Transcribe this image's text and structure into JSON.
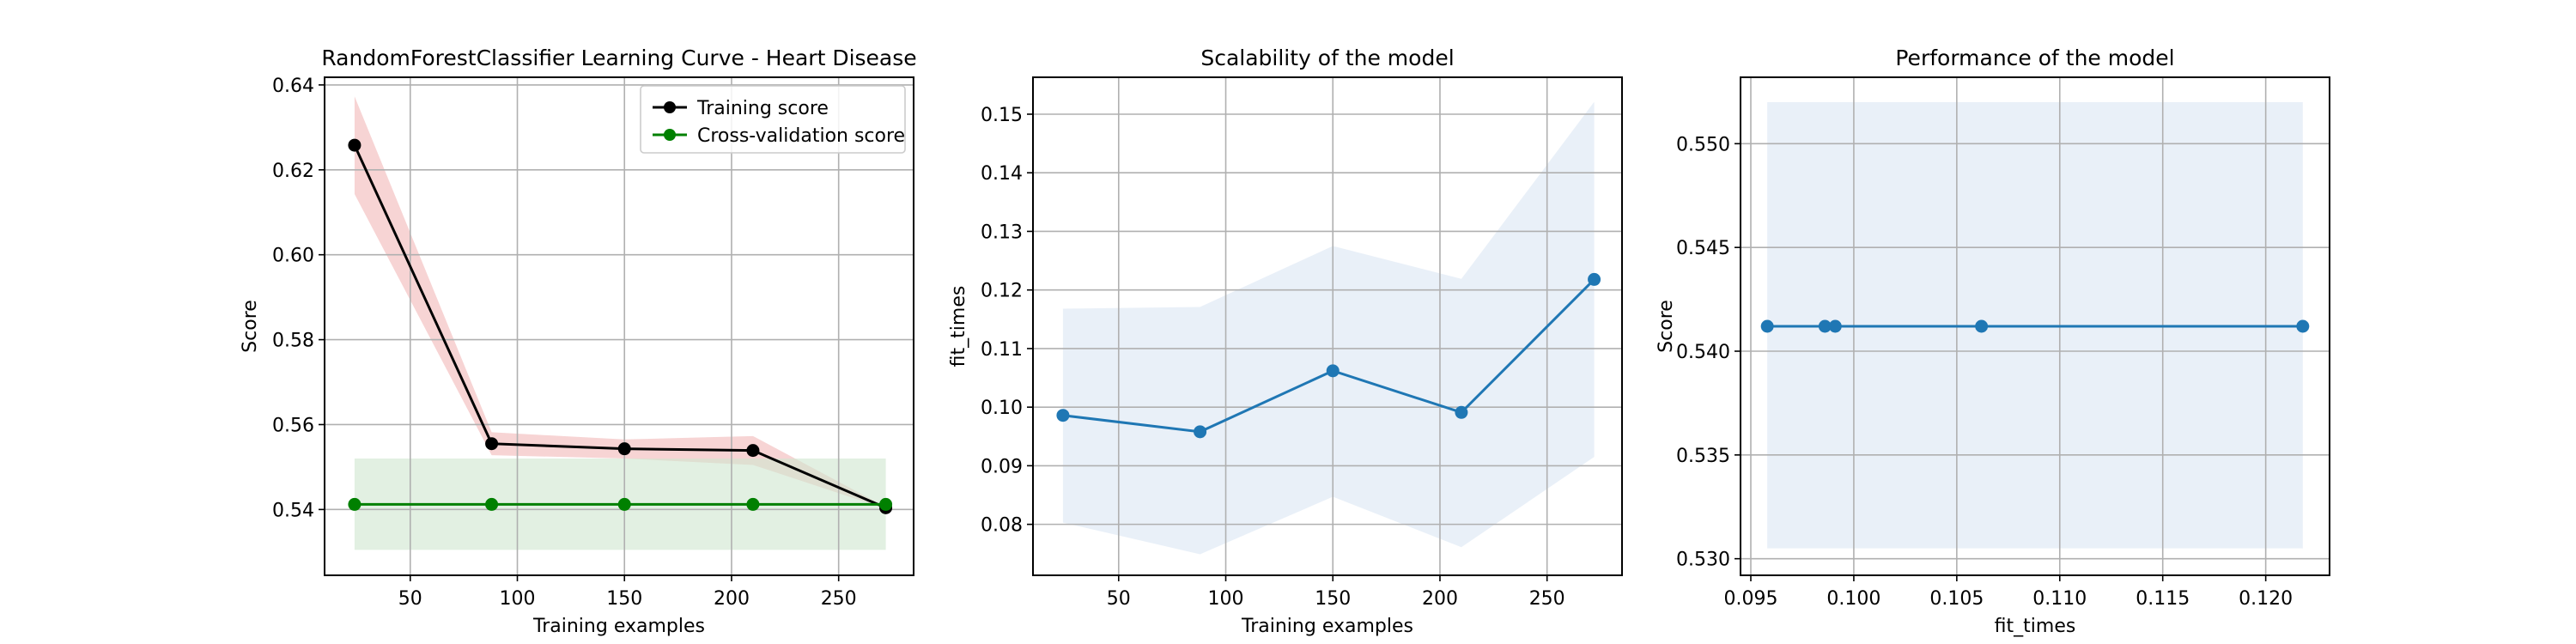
{
  "figure": {
    "background": "#ffffff",
    "colors": {
      "training": "#000000",
      "training_band": "#f2b8b8",
      "cv": "#008000",
      "cv_band": "#cfe6cf",
      "blue": "#1f77b4",
      "blue_band": "#dbe6f3",
      "grid": "#b0b0b0"
    }
  },
  "chart_data": [
    {
      "type": "line",
      "title": "RandomForestClassifier Learning Curve - Heart Disease",
      "xlabel": "Training examples",
      "ylabel": "Score",
      "xlim": [
        10,
        285
      ],
      "ylim": [
        0.5245,
        0.6418
      ],
      "xticks": [
        50,
        100,
        150,
        200,
        250
      ],
      "xtick_labels": [
        "50",
        "100",
        "150",
        "200",
        "250"
      ],
      "yticks": [
        0.54,
        0.56,
        0.58,
        0.6,
        0.62,
        0.64
      ],
      "ytick_labels": [
        "0.54",
        "0.56",
        "0.58",
        "0.60",
        "0.62",
        "0.64"
      ],
      "grid": true,
      "legend": "top-right",
      "x": [
        24,
        88,
        150,
        210,
        272
      ],
      "series": [
        {
          "name": "Training score",
          "color": "#000000",
          "band_color": "#f2b8b8",
          "values": [
            0.6258,
            0.5555,
            0.5543,
            0.5539,
            0.5404
          ],
          "lower": [
            0.6143,
            0.5528,
            0.552,
            0.5505,
            0.5402
          ],
          "upper": [
            0.6373,
            0.5582,
            0.5565,
            0.5573,
            0.5406
          ]
        },
        {
          "name": "Cross-validation score",
          "color": "#008000",
          "band_color": "#cfe6cf",
          "values": [
            0.5412,
            0.5412,
            0.5412,
            0.5412,
            0.5412
          ],
          "lower": [
            0.5305,
            0.5305,
            0.5305,
            0.5305,
            0.5305
          ],
          "upper": [
            0.552,
            0.552,
            0.552,
            0.552,
            0.552
          ]
        }
      ]
    },
    {
      "type": "line",
      "title": "Scalability of the model",
      "xlabel": "Training examples",
      "ylabel": "fit_times",
      "xlim": [
        10,
        285
      ],
      "ylim": [
        0.0713,
        0.1563
      ],
      "xticks": [
        50,
        100,
        150,
        200,
        250
      ],
      "xtick_labels": [
        "50",
        "100",
        "150",
        "200",
        "250"
      ],
      "yticks": [
        0.08,
        0.09,
        0.1,
        0.11,
        0.12,
        0.13,
        0.14,
        0.15
      ],
      "ytick_labels": [
        "0.08",
        "0.09",
        "0.10",
        "0.11",
        "0.12",
        "0.13",
        "0.14",
        "0.15"
      ],
      "grid": true,
      "x": [
        24,
        88,
        150,
        210,
        272
      ],
      "series": [
        {
          "color": "#1f77b4",
          "band_color": "#dbe6f3",
          "values": [
            0.0986,
            0.0958,
            0.1062,
            0.0991,
            0.1218
          ],
          "lower": [
            0.0803,
            0.0749,
            0.0847,
            0.0761,
            0.0915
          ],
          "upper": [
            0.1168,
            0.1171,
            0.1275,
            0.1219,
            0.1521
          ]
        }
      ]
    },
    {
      "type": "line",
      "title": "Performance of the model",
      "xlabel": "fit_times",
      "ylabel": "Score",
      "xlim": [
        0.0945,
        0.1231
      ],
      "ylim": [
        0.5292,
        0.5532
      ],
      "xticks": [
        0.095,
        0.1,
        0.105,
        0.11,
        0.115,
        0.12
      ],
      "xtick_labels": [
        "0.095",
        "0.100",
        "0.105",
        "0.110",
        "0.115",
        "0.120"
      ],
      "yticks": [
        0.53,
        0.535,
        0.54,
        0.545,
        0.55
      ],
      "ytick_labels": [
        "0.530",
        "0.535",
        "0.540",
        "0.545",
        "0.550"
      ],
      "grid": true,
      "x": [
        0.0958,
        0.0986,
        0.0991,
        0.1062,
        0.1218
      ],
      "series": [
        {
          "color": "#1f77b4",
          "band_color": "#dbe6f3",
          "values": [
            0.5412,
            0.5412,
            0.5412,
            0.5412,
            0.5412
          ],
          "lower": [
            0.5305,
            0.5305,
            0.5305,
            0.5305,
            0.5305
          ],
          "upper": [
            0.552,
            0.552,
            0.552,
            0.552,
            0.552
          ]
        }
      ]
    }
  ]
}
